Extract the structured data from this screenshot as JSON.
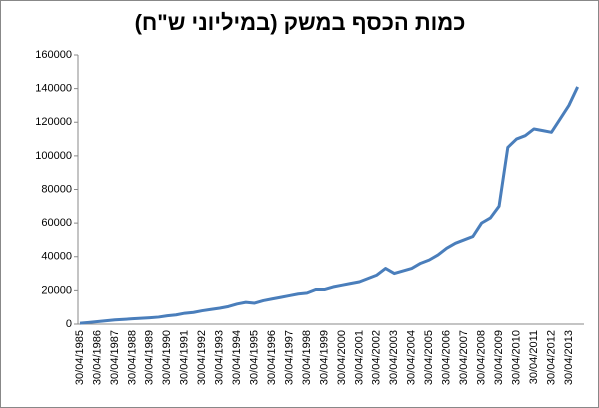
{
  "chart_data": {
    "type": "line",
    "title": "כמות הכסף במשק (במיליוני ש\"ח)",
    "categories": [
      "30/04/1985",
      null,
      "30/04/1986",
      null,
      "30/04/1987",
      null,
      "30/04/1988",
      null,
      "30/04/1989",
      null,
      "30/04/1990",
      null,
      "30/04/1991",
      null,
      "30/04/1992",
      null,
      "30/04/1993",
      null,
      "30/04/1994",
      null,
      "30/04/1995",
      null,
      "30/04/1996",
      null,
      "30/04/1997",
      null,
      "30/04/1998",
      null,
      "30/04/1999",
      null,
      "30/04/2000",
      null,
      "30/04/2001",
      null,
      "30/04/2002",
      null,
      "30/04/2003",
      null,
      "30/04/2004",
      null,
      "30/04/2005",
      null,
      "30/04/2006",
      null,
      "30/04/2007",
      null,
      "30/04/2008",
      null,
      "30/04/2009",
      null,
      "30/04/2010",
      null,
      "30/04/2011",
      null,
      "30/04/2012",
      null,
      "30/04/2013",
      null
    ],
    "values": [
      500,
      1000,
      1500,
      2000,
      2500,
      2800,
      3200,
      3500,
      3800,
      4200,
      5000,
      5500,
      6500,
      7000,
      8000,
      8800,
      9500,
      10500,
      12000,
      13000,
      12500,
      14000,
      15000,
      16000,
      17000,
      18000,
      18500,
      20500,
      20500,
      22000,
      23000,
      24000,
      25000,
      27000,
      29000,
      33000,
      30000,
      31500,
      33000,
      36000,
      38000,
      41000,
      45000,
      48000,
      50000,
      52000,
      60000,
      63000,
      70000,
      105000,
      110000,
      112000,
      116000,
      115000,
      114000,
      122000,
      130000,
      141000
    ],
    "color": "#4a7ebb",
    "ylim": [
      0,
      160000
    ],
    "yticks": [
      0,
      20000,
      40000,
      60000,
      80000,
      100000,
      120000,
      140000,
      160000
    ]
  }
}
